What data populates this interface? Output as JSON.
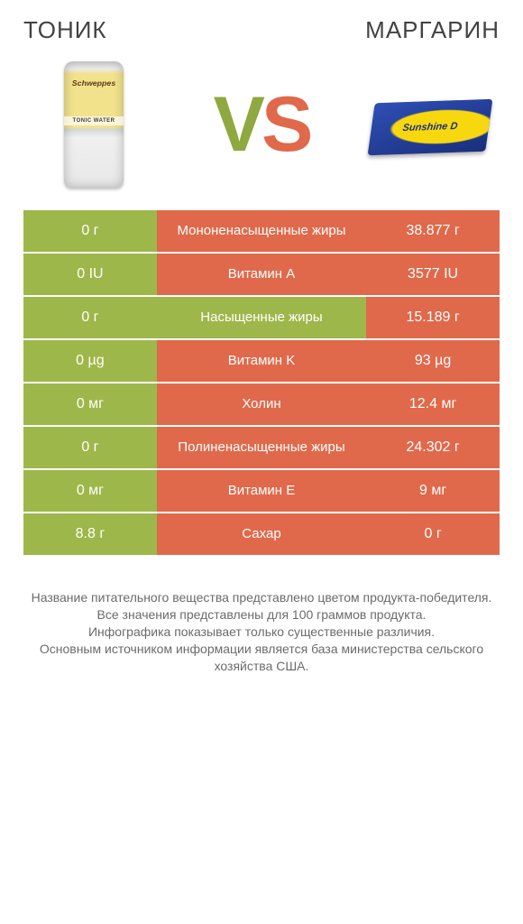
{
  "header": {
    "left": "Тоник",
    "right": "Маргарин",
    "vs_v": "V",
    "vs_s": "S"
  },
  "products": {
    "left": {
      "logo": "Schweppes",
      "strip": "TONIC WATER"
    },
    "right": {
      "text": "Sunshine D"
    }
  },
  "colors": {
    "green": "#9eb74a",
    "orange": "#e0694b"
  },
  "rows": [
    {
      "left": "0 г",
      "label": "Мононенасыщенные жиры",
      "right": "38.877 г",
      "winner": "B"
    },
    {
      "left": "0 IU",
      "label": "Витамин A",
      "right": "3577 IU",
      "winner": "B"
    },
    {
      "left": "0 г",
      "label": "Насыщенные жиры",
      "right": "15.189 г",
      "winner": "A"
    },
    {
      "left": "0 µg",
      "label": "Витамин K",
      "right": "93 µg",
      "winner": "B"
    },
    {
      "left": "0 мг",
      "label": "Холин",
      "right": "12.4 мг",
      "winner": "B"
    },
    {
      "left": "0 г",
      "label": "Полиненасыщенные жиры",
      "right": "24.302 г",
      "winner": "B"
    },
    {
      "left": "0 мг",
      "label": "Витамин E",
      "right": "9 мг",
      "winner": "B"
    },
    {
      "left": "8.8 г",
      "label": "Сахар",
      "right": "0 г",
      "winner": "B"
    }
  ],
  "footer": {
    "l1": "Название питательного вещества представлено цветом продукта-победителя.",
    "l2": "Все значения представлены для 100 граммов продукта.",
    "l3": "Инфографика показывает только существенные различия.",
    "l4": "Основным источником информации является база министерства сельского хозяйства США."
  }
}
